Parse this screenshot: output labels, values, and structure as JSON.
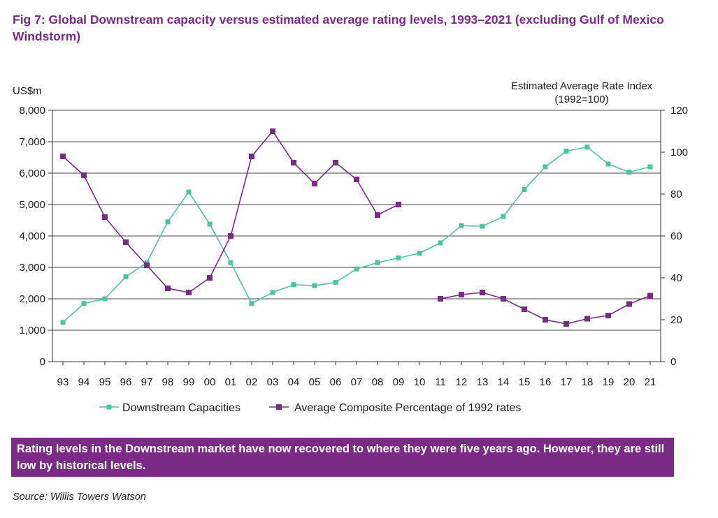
{
  "figure": {
    "title": "Fig 7: Global Downstream capacity versus estimated average rating levels, 1993–2021 (excluding Gulf of Mexico Windstorm)",
    "callout": "Rating levels in the Downstream market have now recovered to where they were five years ago. However, they are still low by historical levels.",
    "source": "Source: Willis Towers Watson"
  },
  "chart_data": {
    "type": "line",
    "categories": [
      "93",
      "94",
      "95",
      "96",
      "97",
      "98",
      "99",
      "00",
      "01",
      "02",
      "03",
      "04",
      "05",
      "06",
      "07",
      "08",
      "09",
      "10",
      "11",
      "12",
      "13",
      "14",
      "15",
      "16",
      "17",
      "18",
      "19",
      "20",
      "21"
    ],
    "left_axis": {
      "label": "US$m",
      "ylim": [
        0,
        8000
      ],
      "ticks": [
        0,
        1000,
        2000,
        3000,
        4000,
        5000,
        6000,
        7000,
        8000
      ],
      "tick_labels": [
        "0",
        "1,000",
        "2,000",
        "3,000",
        "4,000",
        "5,000",
        "6,000",
        "7,000",
        "8,000"
      ]
    },
    "right_axis": {
      "label_line1": "Estimated Average Rate Index",
      "label_line2": "(1992=100)",
      "ylim": [
        0,
        120
      ],
      "ticks": [
        0,
        20,
        40,
        60,
        80,
        100,
        120
      ],
      "tick_labels": [
        "0",
        "20",
        "40",
        "60",
        "80",
        "100",
        "120"
      ]
    },
    "grid": true,
    "legend_position": "bottom",
    "series": [
      {
        "name": "Downstream Capacities",
        "axis": "left",
        "color": "#4cc4a4",
        "values": [
          1250,
          1850,
          2000,
          2700,
          3150,
          4450,
          5400,
          4380,
          3150,
          1850,
          2200,
          2450,
          2420,
          2520,
          2950,
          3150,
          3300,
          3450,
          3780,
          4330,
          4310,
          4620,
          5480,
          6200,
          6700,
          6830,
          6290,
          6030,
          6200
        ]
      },
      {
        "name": "Average Composite Percentage of 1992 rates",
        "axis": "right",
        "color": "#7a2a87",
        "values": [
          98,
          89,
          69,
          57,
          46,
          35,
          33,
          40,
          60,
          98,
          110,
          95,
          85,
          95,
          87,
          70,
          75,
          null,
          30,
          32,
          33,
          30,
          25,
          20,
          18,
          20.5,
          22,
          27.5,
          31.5
        ]
      }
    ]
  }
}
